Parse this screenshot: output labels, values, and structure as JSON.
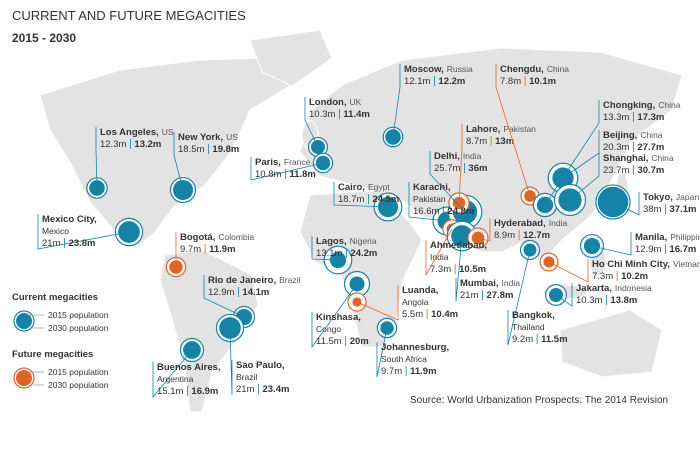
{
  "header": {
    "title": "CURRENT AND FUTURE MEGACITIES",
    "subtitle": "2015 - 2030"
  },
  "cities": [
    {
      "name": "Los Angeles,",
      "country": "US",
      "group": "current",
      "pop_2015": 12.3,
      "pop_2015_label": "12.3m",
      "pop_2030": 13.2,
      "pop_2030_label": "13.2m"
    },
    {
      "name": "New York,",
      "country": "US",
      "group": "current",
      "pop_2015": 18.5,
      "pop_2015_label": "18.5m",
      "pop_2030": 19.8,
      "pop_2030_label": "19.8m"
    },
    {
      "name": "Mexico City,",
      "country": "Mexico",
      "group": "current",
      "pop_2015": 21,
      "pop_2015_label": "21m",
      "pop_2030": 23.8,
      "pop_2030_label": "23.8m"
    },
    {
      "name": "Bogotá,",
      "country": "Colombia",
      "group": "future",
      "pop_2015": 9.7,
      "pop_2015_label": "9.7m",
      "pop_2030": 11.9,
      "pop_2030_label": "11.9m"
    },
    {
      "name": "Rio de Janeiro,",
      "country": "Brazil",
      "group": "current",
      "pop_2015": 12.9,
      "pop_2015_label": "12.9m",
      "pop_2030": 14.1,
      "pop_2030_label": "14.1m"
    },
    {
      "name": "Sao Paulo,",
      "country": "Brazil",
      "group": "current",
      "pop_2015": 21,
      "pop_2015_label": "21m",
      "pop_2030": 23.4,
      "pop_2030_label": "23.4m"
    },
    {
      "name": "Buenos Aires,",
      "country": "Argentina",
      "group": "current",
      "pop_2015": 15.1,
      "pop_2015_label": "15.1m",
      "pop_2030": 16.9,
      "pop_2030_label": "16.9m"
    },
    {
      "name": "London,",
      "country": "UK",
      "group": "current",
      "pop_2015": 10.3,
      "pop_2015_label": "10.3m",
      "pop_2030": 11.4,
      "pop_2030_label": "11.4m"
    },
    {
      "name": "Paris,",
      "country": "France",
      "group": "current",
      "pop_2015": 10.8,
      "pop_2015_label": "10.8m",
      "pop_2030": 11.8,
      "pop_2030_label": "11.8m"
    },
    {
      "name": "Moscow,",
      "country": "Russia",
      "group": "current",
      "pop_2015": 12.1,
      "pop_2015_label": "12.1m",
      "pop_2030": 12.2,
      "pop_2030_label": "12.2m"
    },
    {
      "name": "Cairo,",
      "country": "Egypt",
      "group": "current",
      "pop_2015": 18.7,
      "pop_2015_label": "18.7m",
      "pop_2030": 24.5,
      "pop_2030_label": "24.5m"
    },
    {
      "name": "Lagos,",
      "country": "Nigeria",
      "group": "current",
      "pop_2015": 13.1,
      "pop_2015_label": "13.1m",
      "pop_2030": 24.2,
      "pop_2030_label": "24.2m"
    },
    {
      "name": "Kinshasa,",
      "country": "Congo",
      "group": "current",
      "pop_2015": 11.5,
      "pop_2015_label": "11.5m",
      "pop_2030": 20,
      "pop_2030_label": "20m"
    },
    {
      "name": "Luanda,",
      "country": "Angola",
      "group": "future",
      "pop_2015": 5.5,
      "pop_2015_label": "5.5m",
      "pop_2030": 10.4,
      "pop_2030_label": "10.4m"
    },
    {
      "name": "Johannesburg,",
      "country": "South Africa",
      "group": "current",
      "pop_2015": 9.7,
      "pop_2015_label": "9.7m",
      "pop_2030": 11.9,
      "pop_2030_label": "11.9m"
    },
    {
      "name": "Karachi,",
      "country": "Pakistan",
      "group": "current",
      "pop_2015": 16.6,
      "pop_2015_label": "16.6m",
      "pop_2030": 24.8,
      "pop_2030_label": "24.8m"
    },
    {
      "name": "Delhi,",
      "country": "India",
      "group": "current",
      "pop_2015": 25.7,
      "pop_2015_label": "25.7m",
      "pop_2030": 36,
      "pop_2030_label": "36m"
    },
    {
      "name": "Lahore,",
      "country": "Pakistan",
      "group": "future",
      "pop_2015": 8.7,
      "pop_2015_label": "8.7m",
      "pop_2030": 13,
      "pop_2030_label": "13m"
    },
    {
      "name": "Chengdu,",
      "country": "China",
      "group": "future",
      "pop_2015": 7.8,
      "pop_2015_label": "7.8m",
      "pop_2030": 10.1,
      "pop_2030_label": "10.1m"
    },
    {
      "name": "Ahmedabad,",
      "country": "India",
      "group": "future",
      "pop_2015": 7.3,
      "pop_2015_label": "7.3m",
      "pop_2030": 10.5,
      "pop_2030_label": "10.5m"
    },
    {
      "name": "Mumbai,",
      "country": "India",
      "group": "current",
      "pop_2015": 21,
      "pop_2015_label": "21m",
      "pop_2030": 27.8,
      "pop_2030_label": "27.8m"
    },
    {
      "name": "Hyderabad,",
      "country": "India",
      "group": "future",
      "pop_2015": 8.9,
      "pop_2015_label": "8.9m",
      "pop_2030": 12.7,
      "pop_2030_label": "12.7m"
    },
    {
      "name": "Chongking,",
      "country": "China",
      "group": "current",
      "pop_2015": 13.3,
      "pop_2015_label": "13.3m",
      "pop_2030": 17.3,
      "pop_2030_label": "17.3m"
    },
    {
      "name": "Beijing,",
      "country": "China",
      "group": "current",
      "pop_2015": 20.3,
      "pop_2015_label": "20.3m",
      "pop_2030": 27.7,
      "pop_2030_label": "27.7m"
    },
    {
      "name": "Shanghai,",
      "country": "China",
      "group": "current",
      "pop_2015": 23.7,
      "pop_2015_label": "23.7m",
      "pop_2030": 30.7,
      "pop_2030_label": "30.7m"
    },
    {
      "name": "Tokyo,",
      "country": "Japan",
      "group": "current",
      "pop_2015": 38,
      "pop_2015_label": "38m",
      "pop_2030": 37.1,
      "pop_2030_label": "37.1m"
    },
    {
      "name": "Manila,",
      "country": "Philippines",
      "group": "current",
      "pop_2015": 12.9,
      "pop_2015_label": "12.9m",
      "pop_2030": 16.7,
      "pop_2030_label": "16.7m"
    },
    {
      "name": "Ho Chi Minh City,",
      "country": "Vietnam",
      "group": "future",
      "pop_2015": 7.3,
      "pop_2015_label": "7.3m",
      "pop_2030": 10.2,
      "pop_2030_label": "10.2m"
    },
    {
      "name": "Bangkok,",
      "country": "Thailand",
      "group": "current",
      "pop_2015": 9.2,
      "pop_2015_label": "9.2m",
      "pop_2030": 11.5,
      "pop_2030_label": "11.5m"
    },
    {
      "name": "Jakarta,",
      "country": "Indonesia",
      "group": "current",
      "pop_2015": 10.3,
      "pop_2015_label": "10.3m",
      "pop_2030": 13.8,
      "pop_2030_label": "13.8m"
    }
  ],
  "legend": {
    "current": {
      "title": "Current megacities",
      "item_2015": "2015 population",
      "item_2030": "2030 population"
    },
    "future": {
      "title": "Future megacities",
      "item_2015": "2015 population",
      "item_2030": "2030 population"
    }
  },
  "source": "Source: World Urbanization Prospects: The 2014 Revision"
}
